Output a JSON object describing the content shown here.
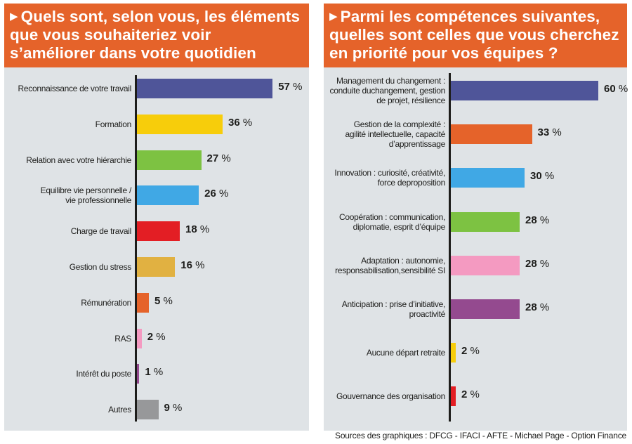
{
  "chart_data": [
    {
      "type": "bar",
      "orientation": "horizontal",
      "title": "Quels sont, selon vous, les éléments que vous souhaiteriez voir s’améliorer dans votre quotidien",
      "xlabel": "",
      "ylabel": "",
      "unit": "%",
      "grid": false,
      "xlim": [
        0,
        70
      ],
      "categories": [
        "Reconnaissance de votre travail",
        "Formation",
        "Relation avec votre hiérarchie",
        "Equilibre vie personnelle / vie professionnelle",
        "Charge de travail",
        "Gestion du stress",
        "Rémunération",
        "RAS",
        "Intérêt du poste",
        "Autres"
      ],
      "values": [
        57,
        36,
        27,
        26,
        18,
        16,
        5,
        2,
        1,
        9
      ],
      "value_labels": [
        "57",
        "36",
        "27",
        "26",
        "18",
        "16",
        "5",
        "2",
        "1",
        "9"
      ],
      "colors": [
        "#4f5599",
        "#f7cd0b",
        "#7dc242",
        "#40a8e5",
        "#e31e24",
        "#e1b141",
        "#e5632a",
        "#f49ac1",
        "#944a8f",
        "#97989a"
      ]
    },
    {
      "type": "bar",
      "orientation": "horizontal",
      "title": "Parmi les compétences suivantes, quelles sont celles que vous cherchez en priorité pour vos équipes ?",
      "xlabel": "",
      "ylabel": "",
      "unit": "%",
      "grid": false,
      "xlim": [
        0,
        70
      ],
      "categories": [
        "Management du changement : conduite duchangement, gestion de projet, résilience",
        "Gestion de la complexité : agilité intellectuelle, capacité d’apprentissage",
        "Innovation : curiosité, créativité, force deproposition",
        "Coopération : communication, diplomatie, esprit d’équipe",
        "Adaptation : autonomie, responsabilisation,sensibilité SI",
        "Anticipation : prise d’initiative, proactivité",
        "Aucune départ retraite",
        "Gouvernance des organisation"
      ],
      "values": [
        60,
        33,
        30,
        28,
        28,
        28,
        2,
        2
      ],
      "value_labels": [
        "60",
        "33",
        "30",
        "28",
        "28",
        "28",
        "2",
        "2"
      ],
      "colors": [
        "#4f5599",
        "#e5632a",
        "#40a8e5",
        "#7dc242",
        "#f49ac1",
        "#944a8f",
        "#f7cd0b",
        "#e31e24"
      ]
    }
  ],
  "left_panel": {
    "title_marker": "▶",
    "title_lines": [
      "Quels sont, selon vous, les éléments",
      "que vous souhaiteriez voir",
      "s’améliorer dans votre quotidien"
    ],
    "label_lines": [
      [
        "Reconnaissance de votre travail"
      ],
      [
        "Formation"
      ],
      [
        "Relation avec votre hiérarchie"
      ],
      [
        "Equilibre vie personnelle /",
        "vie professionnelle"
      ],
      [
        "Charge de travail"
      ],
      [
        "Gestion du stress"
      ],
      [
        "Rémunération"
      ],
      [
        "RAS"
      ],
      [
        "Intérêt du poste"
      ],
      [
        "Autres"
      ]
    ]
  },
  "right_panel": {
    "title_marker": "▶",
    "title_lines": [
      "Parmi les compétences suivantes,",
      "quelles sont celles que vous cherchez",
      "en priorité pour vos équipes ?"
    ],
    "label_lines": [
      [
        "Management du changement :",
        "conduite duchangement, gestion",
        "de projet, résilience"
      ],
      [
        "Gestion de la complexité :",
        "agilité intellectuelle, capacité",
        "d’apprentissage"
      ],
      [
        "Innovation : curiosité, créativité,",
        "force deproposition"
      ],
      [
        "Coopération : communication,",
        "diplomatie, esprit d’équipe"
      ],
      [
        "Adaptation : autonomie,",
        "responsabilisation,sensibilité SI"
      ],
      [
        "Anticipation : prise d’initiative,",
        "proactivité"
      ],
      [
        "Aucune départ retraite"
      ],
      [
        "Gouvernance des organisation"
      ]
    ]
  },
  "percent_sign": "%",
  "footer": {
    "source": "Sources des graphiques : DFCG - IFACI - AFTE - Michael Page - Option Finance"
  }
}
